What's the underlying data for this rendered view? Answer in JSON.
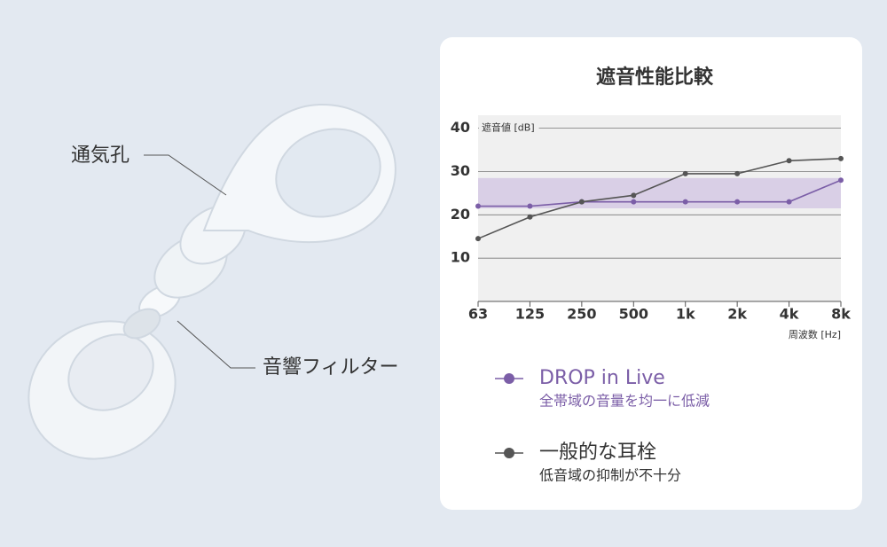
{
  "labels": {
    "vent": "通気孔",
    "filter": "音響フィルター"
  },
  "chart_data": {
    "type": "line",
    "title": "遮音性能比較",
    "y_label": "遮音値 [dB]",
    "x_label": "周波数 [Hz]",
    "categories": [
      "63",
      "125",
      "250",
      "500",
      "1k",
      "2k",
      "4k",
      "8k"
    ],
    "ylim": [
      0,
      43
    ],
    "yticks": [
      10,
      20,
      30,
      40
    ],
    "grid": true,
    "highlight_band": [
      21.5,
      28.5
    ],
    "highlight_color": "#d9cfe6",
    "series": [
      {
        "name": "DROP in Live",
        "subtitle": "全帯域の音量を均一に低減",
        "color": "#7b5ea7",
        "values": [
          22,
          22,
          23,
          23,
          23,
          23,
          23,
          28
        ]
      },
      {
        "name": "一般的な耳栓",
        "subtitle": "低音域の抑制が不十分",
        "color": "#555555",
        "values": [
          14.5,
          19.5,
          23,
          24.5,
          29.5,
          29.5,
          32.5,
          33
        ]
      }
    ]
  }
}
